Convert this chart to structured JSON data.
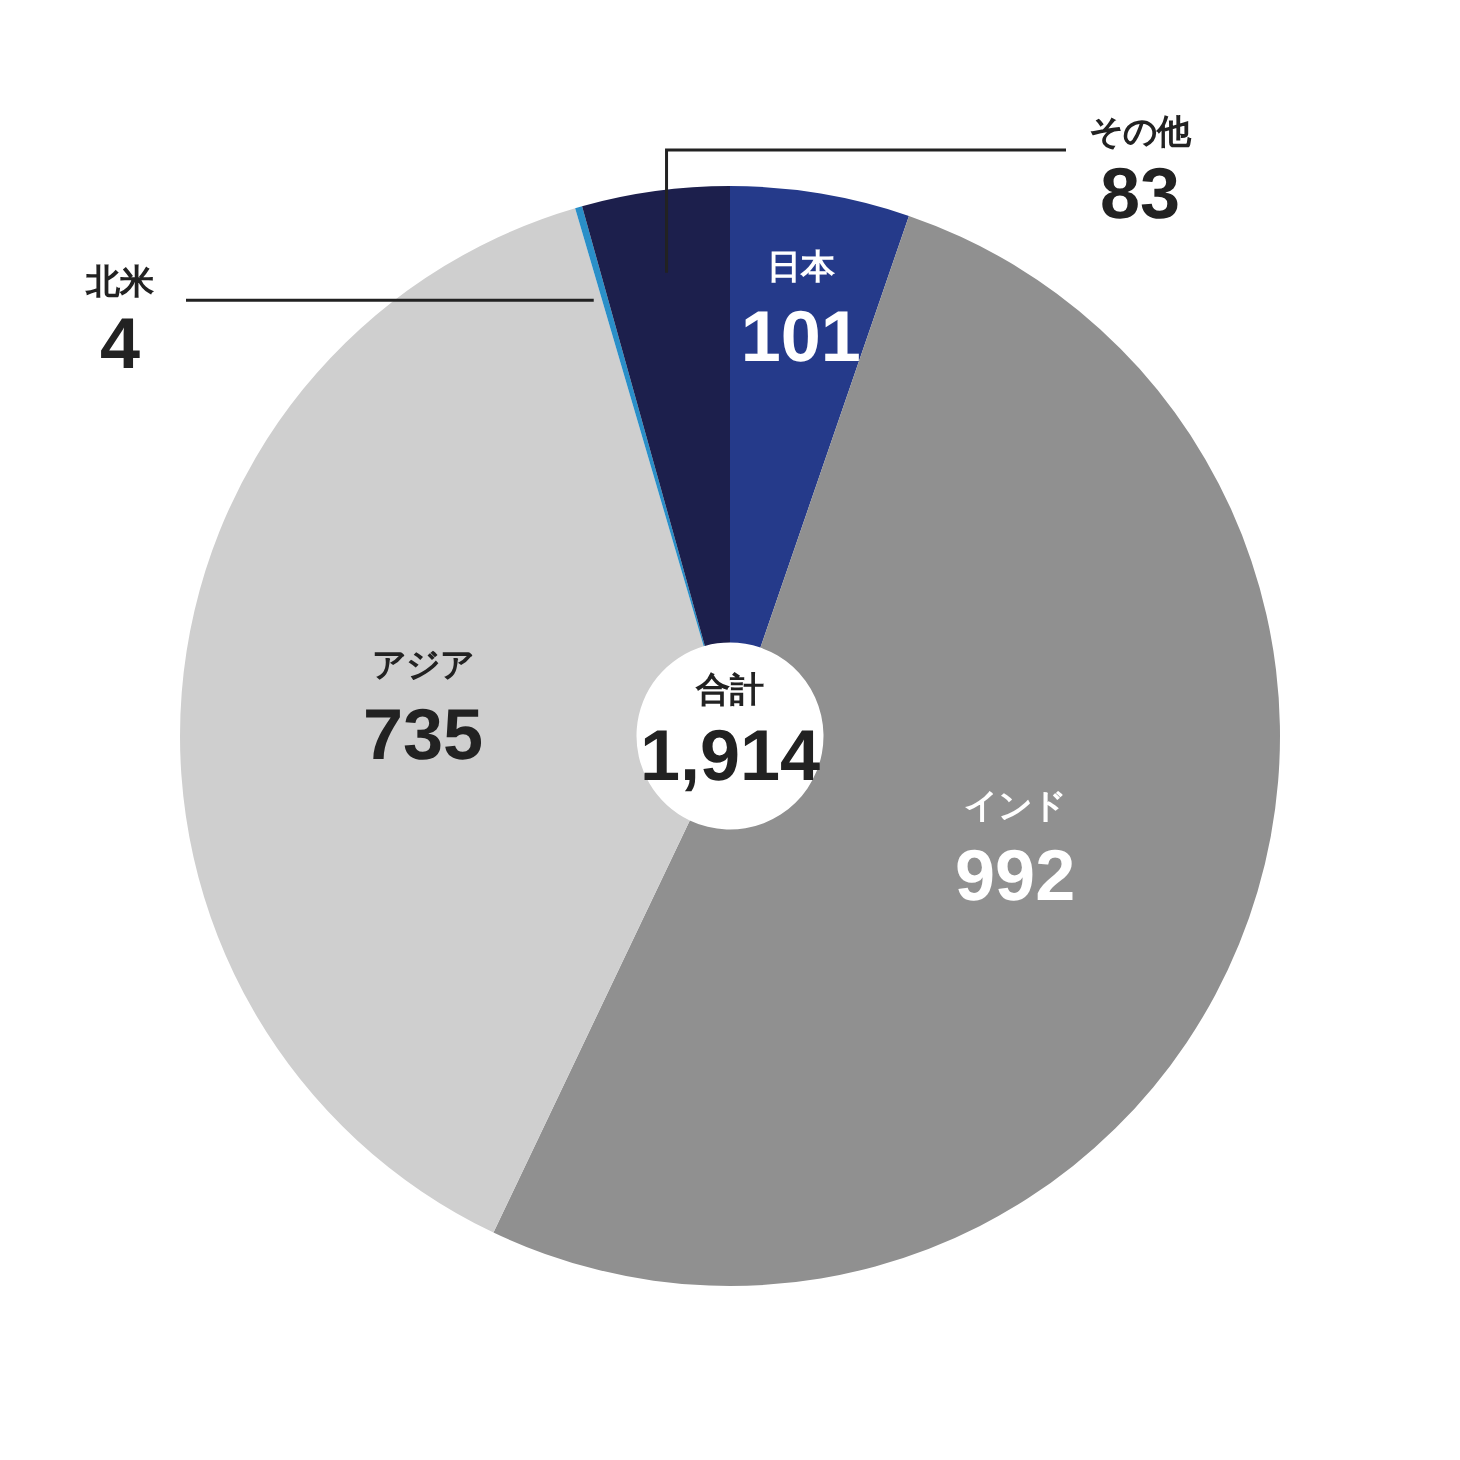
{
  "chart_data": {
    "type": "donut",
    "categories": [
      "日本",
      "インド",
      "アジア",
      "北米",
      "その他"
    ],
    "values": [
      101,
      992,
      735,
      4,
      83
    ],
    "colors": [
      "#253a8a",
      "#909090",
      "#cfcfcf",
      "#2a8fc8",
      "#1c1f4c"
    ],
    "data_labels": true,
    "legend": false,
    "annotations": [
      "合計",
      "1,914"
    ]
  }
}
